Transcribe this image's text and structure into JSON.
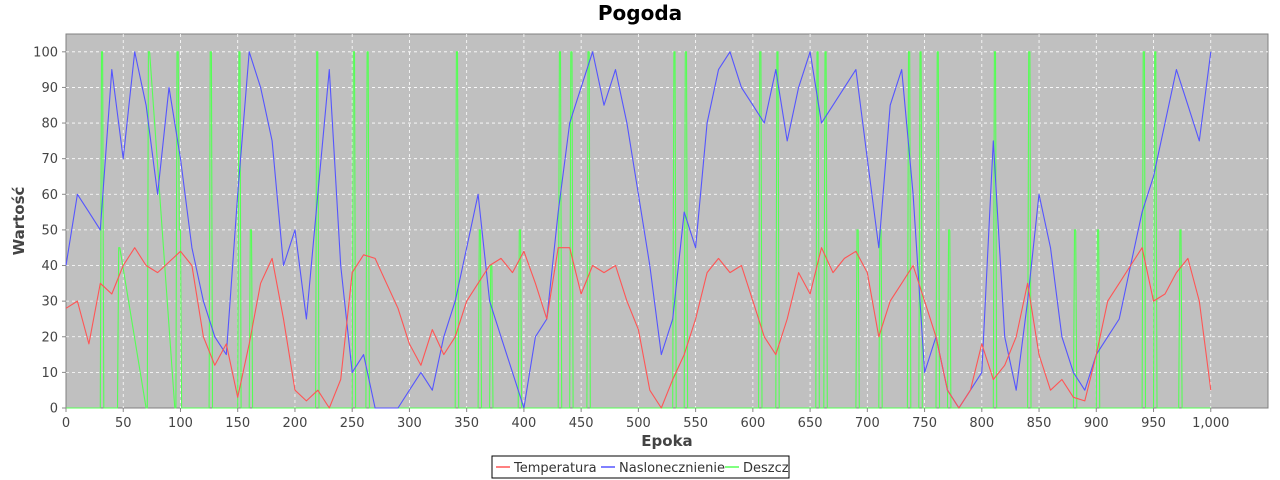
{
  "chart_data": {
    "type": "line",
    "title": "Pogoda",
    "xlabel": "Epoka",
    "ylabel": "Wartość",
    "xlim": [
      0,
      1050
    ],
    "ylim": [
      0,
      105
    ],
    "x_ticks": [
      0,
      50,
      100,
      150,
      200,
      250,
      300,
      350,
      400,
      450,
      500,
      550,
      600,
      650,
      700,
      750,
      800,
      850,
      900,
      950,
      1000
    ],
    "x_tick_labels": [
      "0",
      "50",
      "100",
      "150",
      "200",
      "250",
      "300",
      "350",
      "400",
      "450",
      "500",
      "550",
      "600",
      "650",
      "700",
      "750",
      "800",
      "850",
      "900",
      "950",
      "1,000"
    ],
    "y_ticks": [
      0,
      10,
      20,
      30,
      40,
      50,
      60,
      70,
      80,
      90,
      100
    ],
    "y_tick_labels": [
      "0",
      "10",
      "20",
      "30",
      "40",
      "50",
      "60",
      "70",
      "80",
      "90",
      "100"
    ],
    "grid": true,
    "legend_position": "bottom",
    "background": "#c0c0c0",
    "series": [
      {
        "name": "Temperatura",
        "color": "#ff5555",
        "x": [
          0,
          10,
          20,
          30,
          40,
          50,
          60,
          70,
          80,
          90,
          100,
          110,
          120,
          130,
          140,
          150,
          160,
          170,
          180,
          190,
          200,
          210,
          220,
          230,
          240,
          250,
          260,
          270,
          280,
          290,
          300,
          310,
          320,
          330,
          340,
          350,
          360,
          370,
          380,
          390,
          400,
          410,
          420,
          430,
          440,
          450,
          460,
          470,
          480,
          490,
          500,
          510,
          520,
          530,
          540,
          550,
          560,
          570,
          580,
          590,
          600,
          610,
          620,
          630,
          640,
          650,
          660,
          670,
          680,
          690,
          700,
          710,
          720,
          730,
          740,
          750,
          760,
          770,
          780,
          790,
          800,
          810,
          820,
          830,
          840,
          850,
          860,
          870,
          880,
          890,
          900,
          910,
          920,
          930,
          940,
          950,
          960,
          970,
          980,
          990,
          1000
        ],
        "values": [
          28,
          30,
          18,
          35,
          32,
          40,
          45,
          40,
          38,
          41,
          44,
          40,
          20,
          12,
          18,
          3,
          18,
          35,
          42,
          25,
          5,
          2,
          5,
          0,
          8,
          38,
          43,
          42,
          35,
          28,
          18,
          12,
          22,
          15,
          20,
          30,
          35,
          40,
          42,
          38,
          44,
          35,
          25,
          45,
          45,
          32,
          40,
          38,
          40,
          30,
          22,
          5,
          0,
          8,
          15,
          25,
          38,
          42,
          38,
          40,
          30,
          20,
          15,
          25,
          38,
          32,
          45,
          38,
          42,
          44,
          38,
          20,
          30,
          35,
          40,
          30,
          20,
          5,
          0,
          5,
          18,
          8,
          12,
          20,
          35,
          15,
          5,
          8,
          3,
          2,
          15,
          30,
          35,
          40,
          45,
          30,
          32,
          38,
          42,
          30,
          5
        ]
      },
      {
        "name": "Naslonecznienie",
        "color": "#5555ff",
        "x": [
          0,
          10,
          20,
          30,
          40,
          50,
          60,
          70,
          80,
          90,
          100,
          110,
          120,
          130,
          140,
          150,
          160,
          170,
          180,
          190,
          200,
          210,
          220,
          230,
          240,
          250,
          260,
          270,
          280,
          290,
          300,
          310,
          320,
          330,
          340,
          350,
          360,
          370,
          380,
          390,
          400,
          410,
          420,
          430,
          440,
          450,
          460,
          470,
          480,
          490,
          500,
          510,
          520,
          530,
          540,
          550,
          560,
          570,
          580,
          590,
          600,
          610,
          620,
          630,
          640,
          650,
          660,
          670,
          680,
          690,
          700,
          710,
          720,
          730,
          740,
          750,
          760,
          770,
          780,
          790,
          800,
          810,
          820,
          830,
          840,
          850,
          860,
          870,
          880,
          890,
          900,
          910,
          920,
          930,
          940,
          950,
          960,
          970,
          980,
          990,
          1000
        ],
        "values": [
          40,
          60,
          55,
          50,
          95,
          70,
          100,
          85,
          60,
          90,
          70,
          45,
          30,
          20,
          15,
          60,
          100,
          90,
          75,
          40,
          50,
          25,
          60,
          95,
          40,
          10,
          15,
          0,
          0,
          0,
          5,
          10,
          5,
          20,
          30,
          45,
          60,
          30,
          20,
          10,
          0,
          20,
          25,
          55,
          80,
          90,
          100,
          85,
          95,
          80,
          60,
          40,
          15,
          25,
          55,
          45,
          80,
          95,
          100,
          90,
          85,
          80,
          95,
          75,
          90,
          100,
          80,
          85,
          90,
          95,
          70,
          45,
          85,
          95,
          60,
          10,
          20,
          5,
          0,
          5,
          10,
          75,
          20,
          5,
          30,
          60,
          45,
          20,
          10,
          5,
          15,
          20,
          25,
          40,
          55,
          65,
          80,
          95,
          85,
          75,
          100
        ]
      },
      {
        "name": "Deszcz",
        "color": "#55ff55",
        "x": [
          0,
          30,
          31,
          32,
          33,
          45,
          46,
          47,
          70,
          71,
          72,
          73,
          95,
          96,
          97,
          98,
          99,
          100,
          101,
          125,
          126,
          127,
          128,
          150,
          151,
          152,
          153,
          160,
          161,
          162,
          163,
          218,
          219,
          220,
          221,
          250,
          251,
          252,
          253,
          262,
          263,
          264,
          265,
          340,
          341,
          342,
          343,
          360,
          361,
          362,
          363,
          370,
          371,
          372,
          373,
          395,
          396,
          397,
          398,
          430,
          431,
          432,
          433,
          440,
          441,
          442,
          443,
          455,
          456,
          457,
          458,
          530,
          531,
          532,
          533,
          540,
          541,
          542,
          543,
          605,
          606,
          607,
          608,
          620,
          621,
          622,
          623,
          655,
          656,
          657,
          658,
          662,
          663,
          664,
          665,
          690,
          691,
          692,
          693,
          710,
          711,
          712,
          713,
          735,
          736,
          737,
          738,
          745,
          746,
          747,
          748,
          760,
          761,
          762,
          763,
          770,
          771,
          772,
          773,
          810,
          811,
          812,
          813,
          840,
          841,
          842,
          843,
          880,
          881,
          882,
          883,
          900,
          901,
          902,
          903,
          940,
          941,
          942,
          943,
          950,
          951,
          952,
          953,
          972,
          973,
          974,
          975,
          1000
        ],
        "values": [
          0,
          0,
          100,
          100,
          0,
          0,
          45,
          45,
          0,
          0,
          100,
          100,
          0,
          0,
          100,
          100,
          50,
          50,
          0,
          0,
          100,
          100,
          0,
          0,
          100,
          100,
          0,
          0,
          50,
          50,
          0,
          0,
          100,
          100,
          0,
          0,
          100,
          100,
          0,
          0,
          100,
          100,
          0,
          0,
          100,
          100,
          0,
          0,
          50,
          50,
          0,
          0,
          40,
          40,
          0,
          0,
          50,
          50,
          0,
          0,
          100,
          100,
          0,
          0,
          100,
          100,
          0,
          0,
          100,
          100,
          0,
          0,
          100,
          100,
          0,
          0,
          100,
          100,
          0,
          0,
          100,
          100,
          0,
          0,
          100,
          100,
          0,
          0,
          100,
          100,
          0,
          0,
          100,
          100,
          0,
          0,
          50,
          50,
          0,
          0,
          50,
          50,
          0,
          0,
          100,
          100,
          0,
          0,
          100,
          100,
          0,
          0,
          100,
          100,
          0,
          0,
          50,
          50,
          0,
          0,
          100,
          100,
          0,
          0,
          100,
          100,
          0,
          0,
          50,
          50,
          0,
          0,
          50,
          50,
          0,
          0,
          100,
          100,
          0,
          0,
          100,
          100,
          0,
          0,
          50,
          50,
          0,
          0
        ]
      }
    ]
  }
}
